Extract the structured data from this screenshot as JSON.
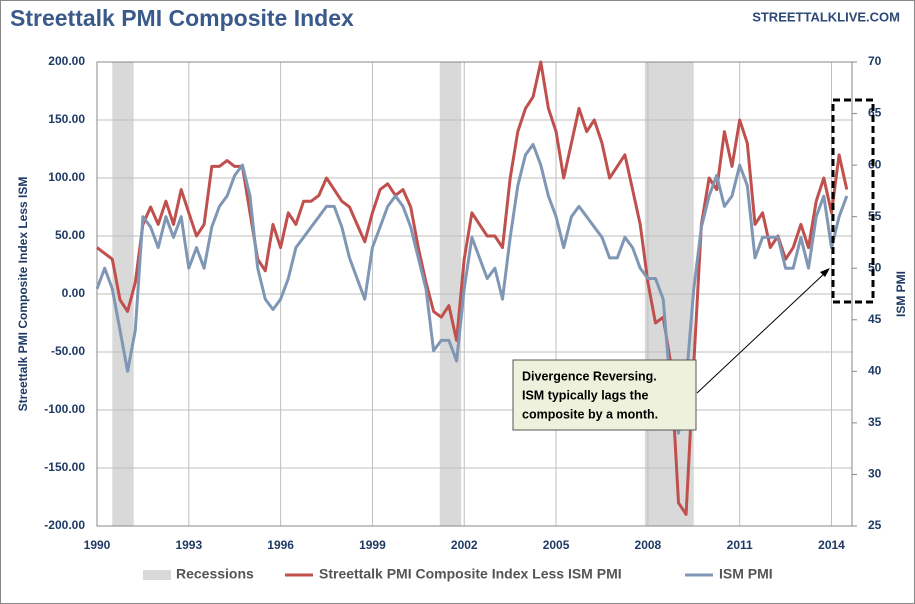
{
  "chart_data": {
    "type": "line",
    "title": "Streettalk PMI Composite Index",
    "source": "STREETTALKLIVE.COM",
    "ylabel": "Streettalk PMI Composite Index Less ISM",
    "y2label": "ISM PMI",
    "annotation": [
      "Divergence Reversing.",
      "ISM typically lags the",
      "composite by a month."
    ],
    "recessions": {
      "name": "Recessions",
      "color": "#d9d9d9",
      "spans": [
        [
          1990.5,
          1991.2
        ],
        [
          2001.2,
          2001.9
        ],
        [
          2007.9,
          2009.5
        ]
      ]
    },
    "x": [
      1990,
      1990.25,
      1990.5,
      1990.75,
      1991,
      1991.25,
      1991.5,
      1991.75,
      1992,
      1992.25,
      1992.5,
      1992.75,
      1993,
      1993.25,
      1993.5,
      1993.75,
      1994,
      1994.25,
      1994.5,
      1994.75,
      1995,
      1995.25,
      1995.5,
      1995.75,
      1996,
      1996.25,
      1996.5,
      1996.75,
      1997,
      1997.25,
      1997.5,
      1997.75,
      1998,
      1998.25,
      1998.5,
      1998.75,
      1999,
      1999.25,
      1999.5,
      1999.75,
      2000,
      2000.25,
      2000.5,
      2000.75,
      2001,
      2001.25,
      2001.5,
      2001.75,
      2002,
      2002.25,
      2002.5,
      2002.75,
      2003,
      2003.25,
      2003.5,
      2003.75,
      2004,
      2004.25,
      2004.5,
      2004.75,
      2005,
      2005.25,
      2005.5,
      2005.75,
      2006,
      2006.25,
      2006.5,
      2006.75,
      2007,
      2007.25,
      2007.5,
      2007.75,
      2008,
      2008.25,
      2008.5,
      2008.75,
      2009,
      2009.25,
      2009.5,
      2009.75,
      2010,
      2010.25,
      2010.5,
      2010.75,
      2011,
      2011.25,
      2011.5,
      2011.75,
      2012,
      2012.25,
      2012.5,
      2012.75,
      2013,
      2013.25,
      2013.5,
      2013.75,
      2014,
      2014.25,
      2014.5
    ],
    "series": [
      {
        "name": "Streettalk PMI Composite Index Less ISM PMI",
        "color": "#c0504d",
        "values": [
          40,
          35,
          30,
          -5,
          -15,
          10,
          60,
          75,
          60,
          80,
          60,
          90,
          70,
          50,
          60,
          110,
          110,
          115,
          110,
          110,
          70,
          30,
          20,
          60,
          40,
          70,
          60,
          80,
          80,
          85,
          100,
          90,
          80,
          75,
          60,
          45,
          70,
          90,
          95,
          85,
          90,
          75,
          40,
          10,
          -15,
          -20,
          -10,
          -40,
          30,
          70,
          60,
          50,
          50,
          40,
          100,
          140,
          160,
          170,
          200,
          160,
          140,
          100,
          130,
          160,
          140,
          150,
          130,
          100,
          110,
          120,
          90,
          60,
          10,
          -25,
          -20,
          -60,
          -180,
          -190,
          -60,
          60,
          100,
          90,
          140,
          110,
          150,
          130,
          60,
          70,
          40,
          50,
          30,
          40,
          60,
          40,
          80,
          100,
          70,
          120,
          90
        ]
      },
      {
        "name": "ISM PMI",
        "color": "#7f97b5",
        "axis": "y2",
        "values": [
          48,
          50,
          48,
          44,
          40,
          44,
          55,
          54,
          52,
          55,
          53,
          55,
          50,
          52,
          50,
          54,
          56,
          57,
          59,
          60,
          57,
          50,
          47,
          46,
          47,
          49,
          52,
          53,
          54,
          55,
          56,
          56,
          54,
          51,
          49,
          47,
          52,
          54,
          56,
          57,
          56,
          54,
          51,
          48,
          42,
          43,
          43,
          41,
          48,
          53,
          51,
          49,
          50,
          47,
          53,
          58,
          61,
          62,
          60,
          57,
          55,
          52,
          55,
          56,
          55,
          54,
          53,
          51,
          51,
          53,
          52,
          50,
          49,
          49,
          47,
          38,
          34,
          39,
          48,
          54,
          57,
          59,
          56,
          57,
          60,
          58,
          51,
          53,
          53,
          53,
          50,
          50,
          53,
          50,
          55,
          57,
          52,
          55,
          57
        ]
      }
    ],
    "xlim": [
      1990,
      2014.67
    ],
    "xticks": [
      1990,
      1993,
      1996,
      1999,
      2002,
      2005,
      2008,
      2011,
      2014
    ],
    "ylim": [
      -200,
      200
    ],
    "yticks": [
      {
        "value": -200,
        "label": "-200.00"
      },
      {
        "value": -150,
        "label": "-150.00"
      },
      {
        "value": -100,
        "label": "-100.00"
      },
      {
        "value": -50,
        "label": "-50.00"
      },
      {
        "value": 0,
        "label": "0.00"
      },
      {
        "value": 50,
        "label": "50.00"
      },
      {
        "value": 100,
        "label": "100.00"
      },
      {
        "value": 150,
        "label": "150.00"
      },
      {
        "value": 200,
        "label": "200.00"
      }
    ],
    "y2lim": [
      25,
      70
    ],
    "y2ticks": [
      25,
      30,
      35,
      40,
      45,
      50,
      55,
      60,
      65,
      70
    ],
    "grid": true,
    "legend": "bottom"
  }
}
